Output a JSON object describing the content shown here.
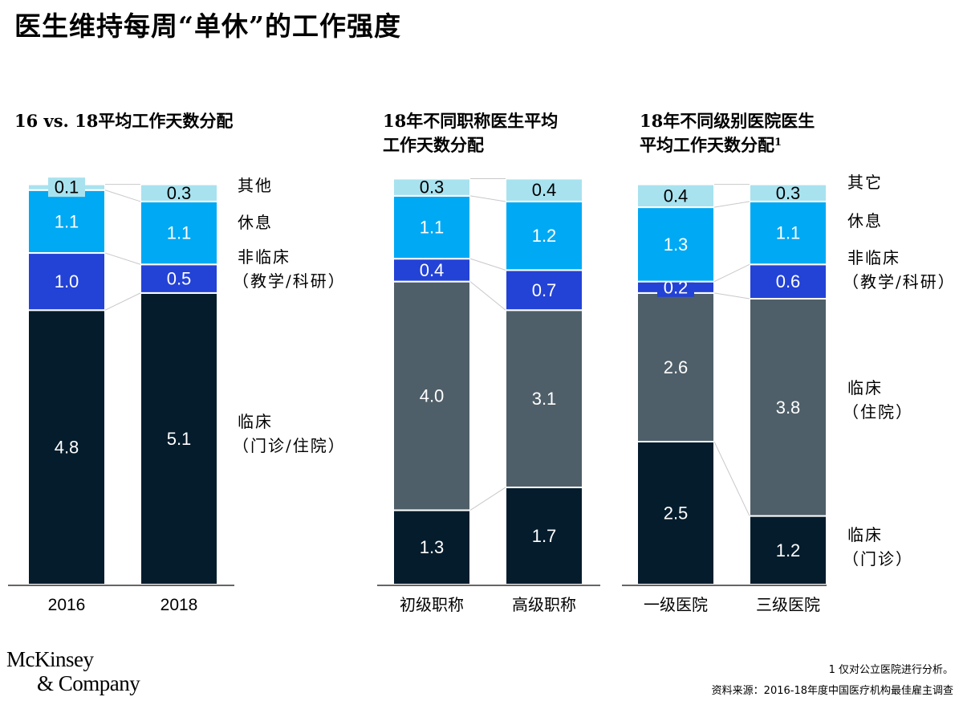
{
  "title": "医生维持每周“单休”的工作强度",
  "panels": [
    {
      "title_lines": [
        "16 vs. 18平均工作天数分配"
      ],
      "superscript": ""
    },
    {
      "title_lines": [
        "18年不同职称医生平均",
        "工作天数分配"
      ],
      "superscript": ""
    },
    {
      "title_lines": [
        "18年不同级别医院医生",
        "平均工作天数分配"
      ],
      "superscript": "1"
    }
  ],
  "chart_data": [
    {
      "type": "bar",
      "stacked": true,
      "categories": [
        "2016",
        "2018"
      ],
      "series": [
        {
          "name": "临床（门诊/住院）",
          "values": [
            4.8,
            5.1
          ]
        },
        {
          "name": "非临床（教学/科研）",
          "values": [
            1.0,
            0.5
          ]
        },
        {
          "name": "休息",
          "values": [
            1.1,
            1.1
          ]
        },
        {
          "name": "其他",
          "values": [
            0.1,
            0.3
          ]
        }
      ],
      "legend": [
        {
          "lines": [
            "其他"
          ]
        },
        {
          "lines": [
            "休息"
          ]
        },
        {
          "lines": [
            "非临床",
            "（教学/科研）"
          ]
        },
        {
          "lines": [
            "临床",
            "（门诊/住院）"
          ]
        }
      ],
      "legend_placement": "right"
    },
    {
      "type": "bar",
      "stacked": true,
      "categories": [
        "初级职称",
        "高级职称"
      ],
      "series": [
        {
          "values": [
            1.3,
            1.7
          ]
        },
        {
          "values": [
            4.0,
            3.1
          ]
        },
        {
          "values": [
            0.4,
            0.7
          ]
        },
        {
          "values": [
            1.1,
            1.2
          ]
        },
        {
          "values": [
            0.3,
            0.4
          ]
        }
      ]
    },
    {
      "type": "bar",
      "stacked": true,
      "categories": [
        "一级医院",
        "三级医院"
      ],
      "series": [
        {
          "name": "临床（门诊）",
          "values": [
            2.5,
            1.2
          ]
        },
        {
          "name": "临床（住院）",
          "values": [
            2.6,
            3.8
          ]
        },
        {
          "name": "非临床（教学/科研）",
          "values": [
            0.2,
            0.6
          ]
        },
        {
          "name": "休息",
          "values": [
            1.3,
            1.1
          ]
        },
        {
          "name": "其它",
          "values": [
            0.4,
            0.3
          ]
        }
      ],
      "legend": [
        {
          "lines": [
            "其它"
          ]
        },
        {
          "lines": [
            "休息"
          ]
        },
        {
          "lines": [
            "非临床",
            "（教学/科研）"
          ]
        },
        {
          "lines": [
            "临床",
            "（住院）"
          ]
        },
        {
          "lines": [
            "临床",
            "（门诊）"
          ]
        }
      ],
      "legend_placement": "right"
    }
  ],
  "colors": {
    "clinic": "#051c2c",
    "inpatient": "#4f5f69",
    "nonclinical": "#2342d6",
    "rest": "#00a9f4",
    "other": "#a8e2ef"
  },
  "footer": {
    "logo_line1": "McKinsey",
    "logo_line2": "& Company",
    "footnote": "1 仅对公立医院进行分析。",
    "source": "资料来源：2016-18年度中国医疗机构最佳雇主调查"
  }
}
